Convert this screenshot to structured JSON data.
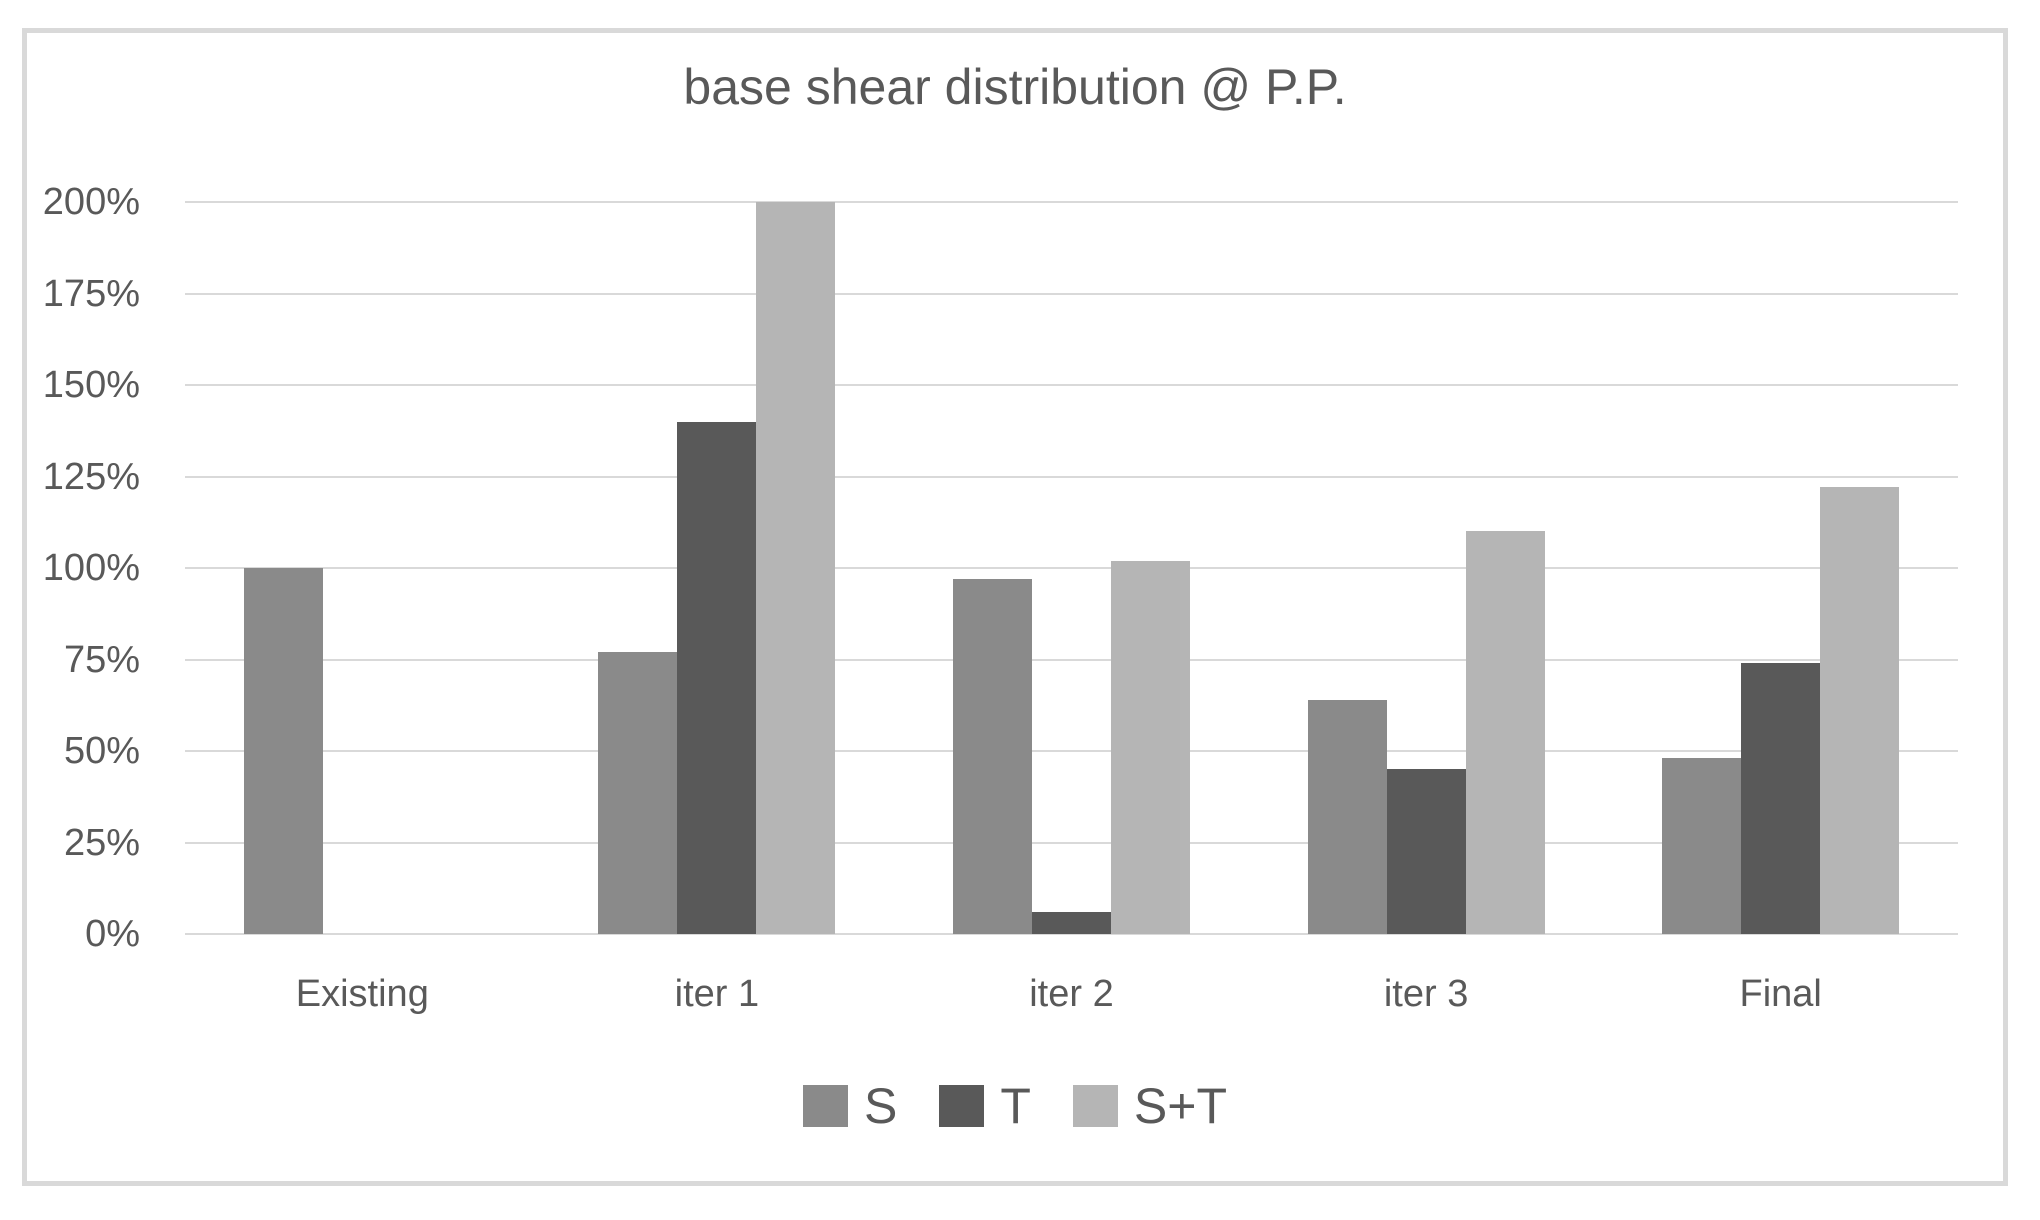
{
  "chart_data": {
    "type": "bar",
    "title": "base shear distribution @ P.P.",
    "categories": [
      "Existing",
      "iter 1",
      "iter 2",
      "iter 3",
      "Final"
    ],
    "series": [
      {
        "name": "S",
        "color": "#8a8a8a",
        "values": [
          100,
          77,
          97,
          64,
          48
        ]
      },
      {
        "name": "T",
        "color": "#595959",
        "values": [
          0,
          140,
          6,
          45,
          74
        ]
      },
      {
        "name": "S+T",
        "color": "#b5b5b5",
        "values": [
          0,
          200,
          102,
          110,
          122
        ]
      }
    ],
    "xlabel": "",
    "ylabel": "",
    "y_axis": {
      "min": 0,
      "max": 200,
      "step": 25,
      "tick_labels": [
        "0%",
        "25%",
        "50%",
        "75%",
        "100%",
        "125%",
        "150%",
        "175%",
        "200%"
      ]
    },
    "ylim": [
      0,
      200
    ],
    "grid": true,
    "legend_position": "bottom-center",
    "colors": {
      "background": "#ffffff",
      "border": "#d9d9d9",
      "gridline": "#d9d9d9",
      "text": "#595959"
    }
  }
}
